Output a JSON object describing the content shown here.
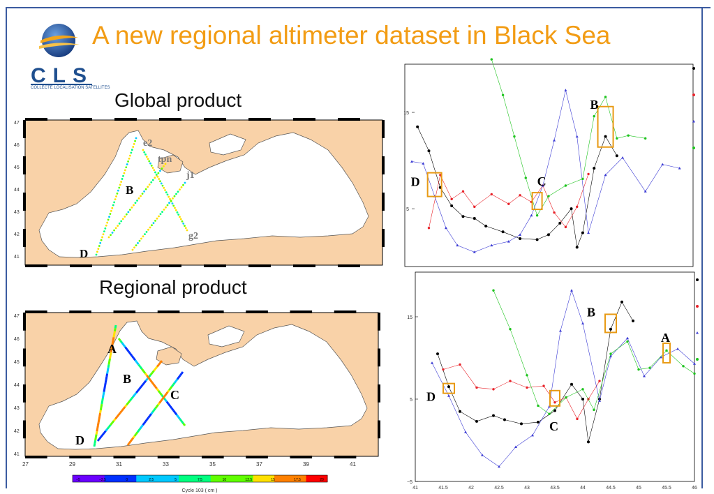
{
  "title": "A new regional altimeter dataset in Black Sea",
  "logo": {
    "name": "CLS",
    "subtitle": "COLLECTE LOCALISATION SATELLITES"
  },
  "panels": {
    "global": {
      "heading": "Global product"
    },
    "regional": {
      "heading": "Regional product"
    }
  },
  "colors": {
    "title": "#f29c14",
    "land": "#f9d2a8",
    "frame": "#3b5ba0",
    "box": "#e89a14"
  },
  "chart_data": [
    {
      "type": "line",
      "id": "global-profiles",
      "y_ticks": [
        "15",
        "5"
      ],
      "ylim": [
        -1,
        20
      ],
      "series": [
        {
          "color": "#000000",
          "points": [
            [
              41.3,
              13.5
            ],
            [
              41.5,
              11
            ],
            [
              41.7,
              7.2
            ],
            [
              41.9,
              5.3
            ],
            [
              42.1,
              4.2
            ],
            [
              42.3,
              4.0
            ],
            [
              42.5,
              3.2
            ],
            [
              42.8,
              2.6
            ],
            [
              43.1,
              1.9
            ],
            [
              43.4,
              1.8
            ],
            [
              43.6,
              2.3
            ],
            [
              43.8,
              3.5
            ],
            [
              44.0,
              5.0
            ],
            [
              44.1,
              1.0
            ],
            [
              44.2,
              2.5
            ],
            [
              44.4,
              9.2
            ],
            [
              44.6,
              12.5
            ],
            [
              44.8,
              10.5
            ]
          ]
        },
        {
          "color": "#e8232a",
          "points": [
            [
              41.5,
              3.0
            ],
            [
              41.7,
              8.5
            ],
            [
              41.9,
              6.0
            ],
            [
              42.1,
              6.8
            ],
            [
              42.3,
              5.2
            ],
            [
              42.6,
              6.5
            ],
            [
              42.9,
              5.5
            ],
            [
              43.1,
              6.4
            ],
            [
              43.3,
              5.7
            ],
            [
              43.5,
              7.4
            ],
            [
              43.7,
              4.6
            ],
            [
              43.9,
              3.1
            ],
            [
              44.1,
              5.2
            ],
            [
              44.3,
              8.6
            ]
          ]
        },
        {
          "color": "#3b3bd4",
          "points": [
            [
              41.2,
              9.9
            ],
            [
              41.4,
              9.7
            ],
            [
              41.6,
              6.3
            ],
            [
              41.8,
              3.0
            ],
            [
              42.0,
              1.2
            ],
            [
              42.3,
              0.5
            ],
            [
              42.6,
              1.2
            ],
            [
              42.9,
              1.6
            ],
            [
              43.1,
              2.3
            ],
            [
              43.3,
              4.3
            ],
            [
              43.5,
              7.4
            ],
            [
              43.7,
              12.1
            ],
            [
              43.9,
              17.3
            ],
            [
              44.1,
              12.5
            ],
            [
              44.3,
              2.5
            ],
            [
              44.6,
              8.5
            ],
            [
              44.9,
              10.3
            ],
            [
              45.3,
              6.8
            ],
            [
              45.6,
              9.6
            ],
            [
              45.9,
              9.2
            ]
          ]
        },
        {
          "color": "#1ec41e",
          "points": [
            [
              42.6,
              20.5
            ],
            [
              42.8,
              16.8
            ],
            [
              43.0,
              12.5
            ],
            [
              43.2,
              8.2
            ],
            [
              43.4,
              4.3
            ],
            [
              43.6,
              6.3
            ],
            [
              43.9,
              7.4
            ],
            [
              44.2,
              8.1
            ],
            [
              44.4,
              14.6
            ],
            [
              44.6,
              16.6
            ],
            [
              44.8,
              12.3
            ],
            [
              45.0,
              12.6
            ],
            [
              45.3,
              12.3
            ]
          ]
        }
      ],
      "annotations": [
        {
          "label": "D",
          "x": 41.6,
          "y": 7.5
        },
        {
          "label": "C",
          "x": 43.4,
          "y": 5.8
        },
        {
          "label": "B",
          "x": 44.6,
          "y": 13.5
        }
      ]
    },
    {
      "type": "line",
      "id": "regional-profiles",
      "x_ticks": [
        "41",
        "41.5",
        "42",
        "42.5",
        "43",
        "43.5",
        "44",
        "44.5",
        "45",
        "45.5",
        "46"
      ],
      "y_ticks": [
        "15",
        "5",
        "−5"
      ],
      "ylim": [
        -5,
        20
      ],
      "series": [
        {
          "color": "#000000",
          "points": [
            [
              41.4,
              10.5
            ],
            [
              41.6,
              6.5
            ],
            [
              41.8,
              3.5
            ],
            [
              42.1,
              2.3
            ],
            [
              42.4,
              3.0
            ],
            [
              42.6,
              2.5
            ],
            [
              42.9,
              2.0
            ],
            [
              43.2,
              2.2
            ],
            [
              43.5,
              3.6
            ],
            [
              43.8,
              6.8
            ],
            [
              44.0,
              5.0
            ],
            [
              44.1,
              -0.2
            ],
            [
              44.3,
              5.0
            ],
            [
              44.5,
              13.5
            ],
            [
              44.7,
              16.8
            ],
            [
              44.9,
              14.5
            ]
          ]
        },
        {
          "color": "#e8232a",
          "points": [
            [
              41.5,
              8.6
            ],
            [
              41.8,
              9.2
            ],
            [
              42.1,
              6.4
            ],
            [
              42.4,
              6.2
            ],
            [
              42.7,
              7.2
            ],
            [
              43.0,
              6.4
            ],
            [
              43.3,
              6.6
            ],
            [
              43.5,
              4.6
            ],
            [
              43.7,
              5.2
            ],
            [
              43.9,
              2.6
            ],
            [
              44.1,
              5.0
            ],
            [
              44.3,
              7.2
            ]
          ]
        },
        {
          "color": "#3b3bd4",
          "points": [
            [
              41.3,
              9.4
            ],
            [
              41.6,
              5.4
            ],
            [
              41.9,
              1.0
            ],
            [
              42.2,
              -1.8
            ],
            [
              42.5,
              -3.2
            ],
            [
              42.8,
              -0.8
            ],
            [
              43.1,
              0.6
            ],
            [
              43.4,
              4.1
            ],
            [
              43.6,
              13.3
            ],
            [
              43.8,
              18.2
            ],
            [
              44.0,
              14.2
            ],
            [
              44.3,
              4.8
            ],
            [
              44.5,
              10.2
            ],
            [
              44.8,
              12.4
            ],
            [
              45.1,
              7.8
            ],
            [
              45.4,
              10.1
            ],
            [
              45.7,
              11.1
            ],
            [
              46.0,
              9.3
            ]
          ]
        },
        {
          "color": "#1ec41e",
          "points": [
            [
              42.4,
              18.2
            ],
            [
              42.7,
              13.5
            ],
            [
              43.0,
              7.9
            ],
            [
              43.2,
              4.2
            ],
            [
              43.4,
              3.2
            ],
            [
              43.7,
              5.2
            ],
            [
              44.0,
              6.2
            ],
            [
              44.2,
              3.7
            ],
            [
              44.5,
              10.5
            ],
            [
              44.8,
              12.0
            ],
            [
              45.0,
              8.6
            ],
            [
              45.2,
              8.8
            ],
            [
              45.5,
              10.9
            ],
            [
              45.8,
              9.0
            ],
            [
              46.0,
              8.1
            ]
          ]
        }
      ],
      "annotations": [
        {
          "label": "D",
          "x": 41.6,
          "y": 6.3
        },
        {
          "label": "C",
          "x": 43.5,
          "y": 5.1
        },
        {
          "label": "B",
          "x": 44.5,
          "y": 14.2
        },
        {
          "label": "A",
          "x": 45.5,
          "y": 10.6
        }
      ]
    },
    {
      "type": "heatmap",
      "id": "colorbar",
      "title": "Cycle   103 ( cm )",
      "ticks": [
        "−5",
        "−2.5",
        "0",
        "2.5",
        "5",
        "7.5",
        "10",
        "12.5",
        "15",
        "17.5",
        "20"
      ]
    }
  ],
  "maps": {
    "global": {
      "lat_ticks": [
        "47",
        "46",
        "45",
        "44",
        "43",
        "42",
        "41"
      ],
      "track_labels": [
        "e2",
        "tpn",
        "j1",
        "g2"
      ],
      "point_labels": [
        "B",
        "D"
      ]
    },
    "regional": {
      "lat_ticks": [
        "47",
        "46",
        "45",
        "44",
        "43",
        "42",
        "41"
      ],
      "lon_ticks": [
        "27",
        "29",
        "31",
        "33",
        "35",
        "37",
        "39",
        "41"
      ],
      "point_labels": [
        "A",
        "B",
        "C",
        "D"
      ]
    }
  }
}
